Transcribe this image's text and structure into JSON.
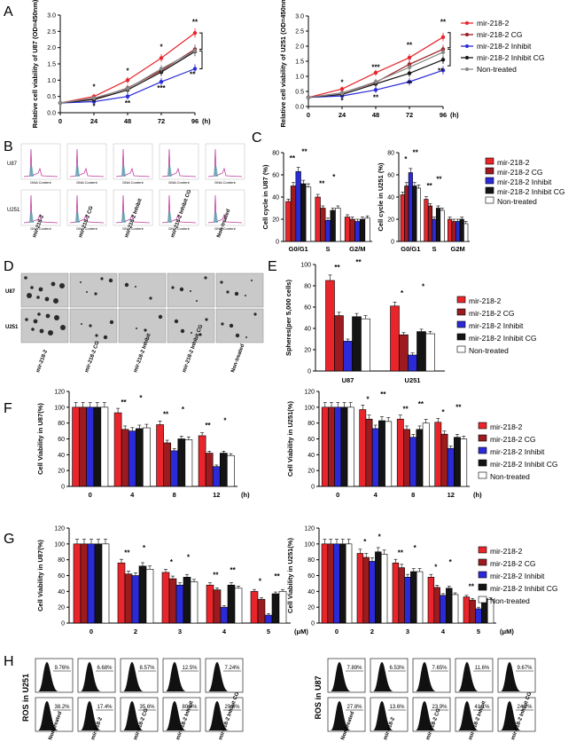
{
  "series_names": [
    "mir-218-2",
    "mir-218-2 CG",
    "mir-218-2 Inhibit",
    "mir-218-2 Inhibit CG",
    "Non-treated"
  ],
  "colors": [
    "#e8252b",
    "#9b1b1e",
    "#2a2ad8",
    "#141414",
    "#ffffff",
    "#888888"
  ],
  "panels": {
    "A": "A",
    "B": "B",
    "C": "C",
    "D": "D",
    "E": "E",
    "F": "F",
    "G": "G",
    "H": "H"
  },
  "chart_data": [
    {
      "id": "A-U87",
      "type": "line",
      "x": [
        0,
        24,
        48,
        72,
        96
      ],
      "xunit": "(h)",
      "ylabel": "Relative cell viability of U87 (OD=450nm)",
      "ylim": [
        0.0,
        3.0
      ],
      "yticks": [
        "0.0",
        "0.5",
        "1.0",
        "1.5",
        "2.0",
        "2.5",
        "3.0"
      ],
      "series": [
        {
          "name": "mir-218-2",
          "values": [
            0.3,
            0.5,
            1.0,
            1.68,
            2.45
          ]
        },
        {
          "name": "mir-218-2 CG",
          "values": [
            0.3,
            0.42,
            0.76,
            1.3,
            1.95
          ]
        },
        {
          "name": "mir-218-2 Inhibit",
          "values": [
            0.3,
            0.34,
            0.5,
            0.95,
            1.35
          ]
        },
        {
          "name": "mir-218-2 Inhibit CG",
          "values": [
            0.3,
            0.4,
            0.7,
            1.25,
            1.88
          ]
        },
        {
          "name": "Non-treated",
          "values": [
            0.3,
            0.45,
            0.74,
            1.35,
            1.9
          ]
        }
      ],
      "annotations": [
        "*",
        "*",
        "*",
        "**",
        "*",
        "***",
        "**"
      ]
    },
    {
      "id": "A-U251",
      "type": "line",
      "x": [
        0,
        24,
        48,
        72,
        96
      ],
      "xunit": "(h)",
      "ylabel": "Relative cell viability of U251 (OD=450nm)",
      "ylim": [
        0.0,
        3.0
      ],
      "yticks": [
        "0.0",
        "0.5",
        "1.0",
        "1.5",
        "2.0",
        "2.5",
        "3.0"
      ],
      "series": [
        {
          "name": "mir-218-2",
          "values": [
            0.3,
            0.58,
            1.12,
            1.62,
            2.3
          ]
        },
        {
          "name": "mir-218-2 CG",
          "values": [
            0.3,
            0.45,
            0.8,
            1.4,
            1.9
          ]
        },
        {
          "name": "mir-218-2 Inhibit",
          "values": [
            0.3,
            0.35,
            0.55,
            0.82,
            1.2
          ]
        },
        {
          "name": "mir-218-2 Inhibit CG",
          "values": [
            0.3,
            0.4,
            0.75,
            1.1,
            1.55
          ]
        },
        {
          "name": "Non-treated",
          "values": [
            0.3,
            0.44,
            0.82,
            1.3,
            1.8
          ]
        }
      ],
      "annotations": [
        "*",
        "*",
        "***",
        "**",
        "**",
        "**",
        "**"
      ]
    },
    {
      "id": "C-U87",
      "type": "bar",
      "categories": [
        "G0/G1",
        "S",
        "G2/M"
      ],
      "ylabel": "Cell cycle in U87 (%)",
      "ylim": [
        0,
        80
      ],
      "yticks": [
        "0",
        "20",
        "40",
        "60",
        "80"
      ],
      "series": [
        {
          "name": "mir-218-2",
          "values": [
            36,
            40,
            22
          ]
        },
        {
          "name": "mir-218-2 CG",
          "values": [
            50,
            30,
            20
          ]
        },
        {
          "name": "mir-218-2 Inhibit",
          "values": [
            63,
            19,
            18
          ]
        },
        {
          "name": "mir-218-2 Inhibit CG",
          "values": [
            52,
            28,
            20
          ]
        },
        {
          "name": "Non-treated",
          "values": [
            49,
            30,
            21
          ]
        }
      ],
      "annotations": [
        "**",
        "**",
        "**",
        "*"
      ]
    },
    {
      "id": "C-U251",
      "type": "bar",
      "categories": [
        "G0/G1",
        "S",
        "G2M"
      ],
      "ylabel": "Cell cycle in U251 (%)",
      "ylim": [
        0,
        80
      ],
      "yticks": [
        "0",
        "20",
        "40",
        "60",
        "80"
      ],
      "series": [
        {
          "name": "mir-218-2",
          "values": [
            42,
            38,
            20
          ]
        },
        {
          "name": "mir-218-2 CG",
          "values": [
            50,
            32,
            18
          ]
        },
        {
          "name": "mir-218-2 Inhibit",
          "values": [
            62,
            20,
            18
          ]
        },
        {
          "name": "mir-218-2 Inhibit CG",
          "values": [
            50,
            30,
            20
          ]
        },
        {
          "name": "Non-treated",
          "values": [
            48,
            28,
            16
          ]
        }
      ],
      "annotations": [
        "*",
        "**",
        "**",
        "**"
      ]
    },
    {
      "id": "E",
      "type": "bar",
      "categories": [
        "U87",
        "U251"
      ],
      "ylabel": "Spheres(per 5,000 cells)",
      "ylim": [
        0,
        100
      ],
      "yticks": [
        "0",
        "20",
        "40",
        "60",
        "80",
        "100"
      ],
      "series": [
        {
          "name": "mir-218-2",
          "values": [
            85,
            61
          ]
        },
        {
          "name": "mir-218-2 CG",
          "values": [
            52,
            34
          ]
        },
        {
          "name": "mir-218-2 Inhibit",
          "values": [
            28,
            15
          ]
        },
        {
          "name": "mir-218-2 Inhibit CG",
          "values": [
            51,
            37
          ]
        },
        {
          "name": "Non-treated",
          "values": [
            49,
            35
          ]
        }
      ],
      "annotations": [
        "**",
        "**",
        "*",
        "*"
      ]
    },
    {
      "id": "F-U87",
      "type": "bar",
      "categories": [
        "0",
        "4",
        "8",
        "12"
      ],
      "xunit": "(h)",
      "ylabel": "Cell Viability  in U87(%)",
      "ylim": [
        0,
        120
      ],
      "yticks": [
        "0",
        "20",
        "40",
        "60",
        "80",
        "100",
        "120"
      ],
      "series": [
        {
          "name": "mir-218-2",
          "values": [
            100,
            93,
            78,
            64
          ]
        },
        {
          "name": "mir-218-2 CG",
          "values": [
            100,
            72,
            55,
            42
          ]
        },
        {
          "name": "mir-218-2 Inhibit",
          "values": [
            100,
            70,
            45,
            25
          ]
        },
        {
          "name": "mir-218-2 Inhibit CG",
          "values": [
            100,
            73,
            60,
            42
          ]
        },
        {
          "name": "Non-treated",
          "values": [
            100,
            74,
            59,
            39
          ]
        }
      ],
      "annotations": [
        "**",
        "*",
        "**",
        "*",
        "**",
        "*"
      ]
    },
    {
      "id": "F-U251",
      "type": "bar",
      "categories": [
        "0",
        "4",
        "8",
        "12"
      ],
      "xunit": "(h)",
      "ylabel": "Cell Viability  in U251(%)",
      "ylim": [
        0,
        120
      ],
      "yticks": [
        "0",
        "20",
        "40",
        "60",
        "80",
        "100",
        "120"
      ],
      "series": [
        {
          "name": "mir-218-2",
          "values": [
            100,
            97,
            85,
            81
          ]
        },
        {
          "name": "mir-218-2 CG",
          "values": [
            100,
            85,
            72,
            66
          ]
        },
        {
          "name": "mir-218-2 Inhibit",
          "values": [
            100,
            73,
            62,
            48
          ]
        },
        {
          "name": "mir-218-2 Inhibit CG",
          "values": [
            100,
            83,
            72,
            62
          ]
        },
        {
          "name": "Non-treated",
          "values": [
            100,
            82,
            80,
            60
          ]
        }
      ],
      "annotations": [
        "*",
        "**",
        "**",
        "**",
        "*",
        "**"
      ]
    },
    {
      "id": "G-U87",
      "type": "bar",
      "categories": [
        "0",
        "2",
        "3",
        "4",
        "5"
      ],
      "xunit": "(μM)",
      "ylabel": "Cell Viability  in U87(%)",
      "ylim": [
        0,
        120
      ],
      "yticks": [
        "0",
        "20",
        "40",
        "60",
        "80",
        "100",
        "120"
      ],
      "series": [
        {
          "name": "mir-218-2",
          "values": [
            100,
            76,
            64,
            48,
            40
          ]
        },
        {
          "name": "mir-218-2 CG",
          "values": [
            100,
            62,
            56,
            42,
            30
          ]
        },
        {
          "name": "mir-218-2 Inhibit",
          "values": [
            100,
            60,
            48,
            20,
            10
          ]
        },
        {
          "name": "mir-218-2 Inhibit CG",
          "values": [
            100,
            72,
            58,
            48,
            37
          ]
        },
        {
          "name": "Non-treated",
          "values": [
            100,
            68,
            52,
            44,
            40
          ]
        }
      ],
      "annotations": [
        "**",
        "*",
        "*",
        "*",
        "**",
        "**",
        "*",
        "**"
      ]
    },
    {
      "id": "G-U251",
      "type": "bar",
      "categories": [
        "0",
        "2",
        "3",
        "4",
        "5"
      ],
      "xunit": "(μM)",
      "ylabel": "Cell Viability  in U251(%)",
      "ylim": [
        0,
        120
      ],
      "yticks": [
        "0",
        "20",
        "40",
        "60",
        "80",
        "100",
        "120"
      ],
      "series": [
        {
          "name": "mir-218-2",
          "values": [
            100,
            88,
            76,
            58,
            33
          ]
        },
        {
          "name": "mir-218-2 CG",
          "values": [
            100,
            83,
            70,
            45,
            29
          ]
        },
        {
          "name": "mir-218-2 Inhibit",
          "values": [
            100,
            78,
            58,
            35,
            18
          ]
        },
        {
          "name": "mir-218-2 Inhibit CG",
          "values": [
            100,
            90,
            65,
            44,
            31
          ]
        },
        {
          "name": "Non-treated",
          "values": [
            100,
            87,
            65,
            36,
            30
          ]
        }
      ],
      "annotations": [
        "*",
        "*",
        "**",
        "*",
        "*",
        "*",
        "**"
      ]
    }
  ],
  "panel_B": {
    "row_labels": [
      "U87",
      "U251"
    ],
    "axis_text": "DNA Content",
    "col_labels": [
      "mir-218-2",
      "mir-218-2 CG",
      "mir-218-2 Inhibit",
      "mir-218-2 Inhibit CG",
      "Non-treated"
    ]
  },
  "panel_D": {
    "row_labels": [
      "U87",
      "U251"
    ],
    "col_labels": [
      "mir-218-2",
      "mir-218-2 CG",
      "mir-218-2 Inhibit",
      "mir-218-2 Inhibit CG",
      "Non-treated"
    ]
  },
  "panel_H": {
    "left": {
      "ylabel": "ROS in U251",
      "row1": [
        "9.76%",
        "6.68%",
        "8.57%",
        "12.5%",
        "7.24%"
      ],
      "row2": [
        "38.2%",
        "17.4%",
        "35.6%",
        "80.4%",
        "29.6%"
      ]
    },
    "right": {
      "ylabel": "ROS in U87",
      "row1": [
        "7.89%",
        "6.53%",
        "7.65%",
        "11.6%",
        "9.67%"
      ],
      "row2": [
        "27.8%",
        "13.6%",
        "23.9%",
        "41.1%",
        "24.2%"
      ]
    },
    "col_labels": [
      "Non-treated",
      "mir-218-2",
      "mir-218-2 CG",
      "mir-218-2 Inhibit",
      "mir-218-2 Inhibit CG"
    ]
  }
}
